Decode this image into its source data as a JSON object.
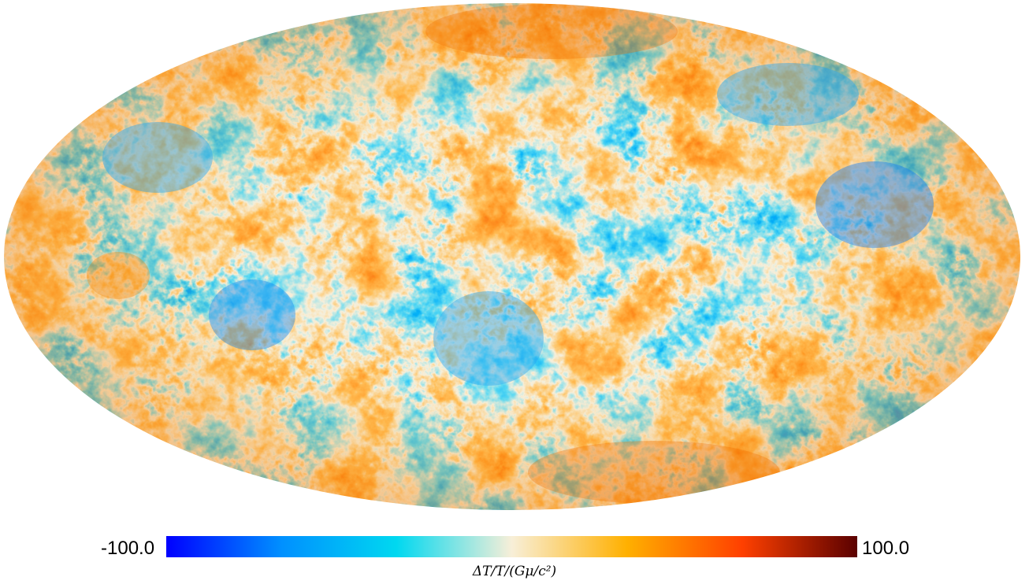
{
  "colorbar": {
    "min_label": "-100.0",
    "max_label": "100.0",
    "unit_label": "ΔT/T/(Gμ/c²)",
    "stops": [
      "#0000ff",
      "#0090ff",
      "#00d8f0",
      "#f8efd8",
      "#ffb000",
      "#ff4000",
      "#5a0000"
    ]
  }
}
